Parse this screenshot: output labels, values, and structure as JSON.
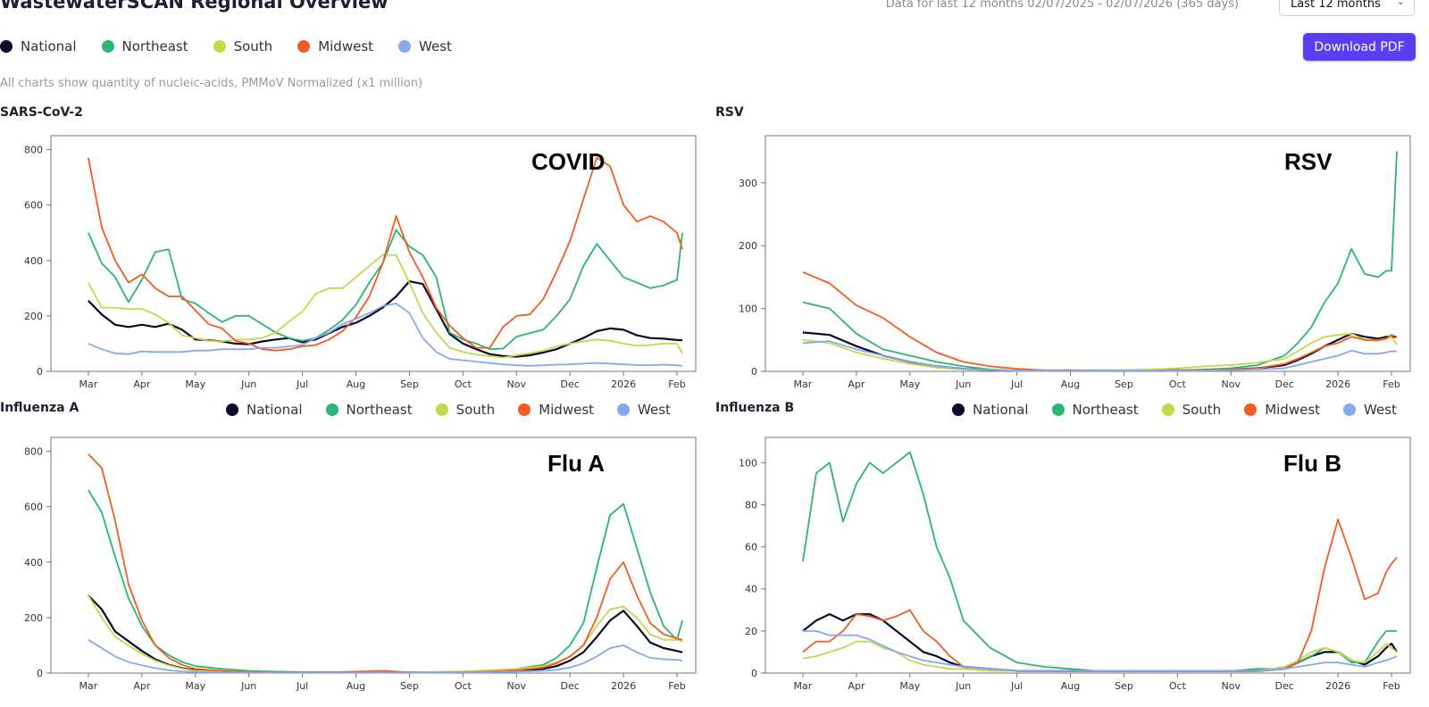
{
  "header": {
    "title": "WastewaterSCAN Regional Overview",
    "range_text": "Data for last 12 months 02/07/2025 - 02/07/2026 (365 days)",
    "range_select": {
      "value": "Last 12 months"
    },
    "download_label": "Download PDF",
    "subtitle": "All charts show quantity of nucleic-acids, PMMoV Normalized (x1 million)"
  },
  "legend": [
    {
      "name": "National",
      "color": "#0b0b2b"
    },
    {
      "name": "Northeast",
      "color": "#2bb673"
    },
    {
      "name": "South",
      "color": "#c5d84a"
    },
    {
      "name": "Midwest",
      "color": "#f25c22"
    },
    {
      "name": "West",
      "color": "#86a8f0"
    }
  ],
  "chart_data": [
    {
      "id": "covid",
      "type": "line",
      "title": "SARS-CoV-2",
      "annotation": "COVID",
      "ylim": [
        0,
        850
      ],
      "yticks": [
        0,
        200,
        400,
        600,
        800
      ],
      "xlabels": [
        "Mar",
        "Apr",
        "May",
        "Jun",
        "Jul",
        "Aug",
        "Sep",
        "Oct",
        "Nov",
        "Dec",
        "2026",
        "Feb"
      ],
      "x": [
        0.0,
        0.25,
        0.5,
        0.75,
        1.0,
        1.25,
        1.5,
        1.75,
        2.0,
        2.25,
        2.5,
        2.75,
        3.0,
        3.25,
        3.5,
        3.75,
        4.0,
        4.25,
        4.5,
        4.75,
        5.0,
        5.25,
        5.5,
        5.75,
        6.0,
        6.25,
        6.5,
        6.75,
        7.0,
        7.25,
        7.5,
        7.75,
        8.0,
        8.25,
        8.5,
        8.75,
        9.0,
        9.25,
        9.5,
        9.75,
        10.0,
        10.25,
        10.5,
        10.75,
        11.0,
        11.1
      ],
      "series": [
        {
          "name": "National",
          "values": [
            255,
            205,
            168,
            160,
            168,
            160,
            172,
            150,
            115,
            112,
            108,
            100,
            98,
            108,
            115,
            120,
            105,
            115,
            138,
            160,
            175,
            200,
            230,
            270,
            325,
            315,
            225,
            135,
            100,
            80,
            62,
            55,
            53,
            58,
            68,
            80,
            100,
            120,
            145,
            155,
            150,
            130,
            120,
            118,
            113,
            112
          ]
        },
        {
          "name": "Northeast",
          "values": [
            500,
            390,
            340,
            250,
            330,
            430,
            440,
            260,
            245,
            210,
            178,
            200,
            200,
            170,
            140,
            120,
            110,
            120,
            150,
            185,
            240,
            320,
            390,
            510,
            450,
            420,
            340,
            140,
            115,
            100,
            80,
            82,
            125,
            138,
            150,
            200,
            260,
            380,
            460,
            400,
            340,
            320,
            300,
            310,
            330,
            500
          ]
        },
        {
          "name": "South",
          "values": [
            320,
            230,
            230,
            225,
            225,
            205,
            175,
            130,
            120,
            110,
            108,
            115,
            115,
            120,
            140,
            180,
            215,
            280,
            300,
            300,
            340,
            380,
            420,
            420,
            320,
            210,
            140,
            85,
            70,
            60,
            55,
            50,
            58,
            65,
            75,
            90,
            100,
            108,
            115,
            110,
            100,
            92,
            95,
            100,
            100,
            65
          ]
        },
        {
          "name": "Midwest",
          "values": [
            770,
            520,
            400,
            320,
            350,
            300,
            270,
            270,
            220,
            170,
            155,
            110,
            100,
            80,
            75,
            80,
            90,
            95,
            115,
            145,
            195,
            270,
            390,
            560,
            430,
            340,
            230,
            165,
            120,
            85,
            85,
            160,
            200,
            205,
            260,
            360,
            470,
            620,
            770,
            740,
            600,
            540,
            560,
            540,
            500,
            440
          ]
        },
        {
          "name": "West",
          "values": [
            100,
            80,
            65,
            62,
            72,
            70,
            70,
            70,
            75,
            75,
            80,
            80,
            80,
            85,
            85,
            90,
            95,
            120,
            140,
            170,
            190,
            210,
            235,
            245,
            210,
            120,
            70,
            45,
            40,
            35,
            30,
            25,
            22,
            20,
            22,
            24,
            25,
            28,
            30,
            28,
            25,
            23,
            22,
            24,
            22,
            20
          ]
        }
      ]
    },
    {
      "id": "rsv",
      "type": "line",
      "title": "RSV",
      "annotation": "RSV",
      "ylim": [
        0,
        375
      ],
      "yticks": [
        0,
        100,
        200,
        300
      ],
      "xlabels": [
        "Mar",
        "Apr",
        "May",
        "Jun",
        "Jul",
        "Aug",
        "Sep",
        "Oct",
        "Nov",
        "Dec",
        "2026",
        "Feb"
      ],
      "x": [
        0.0,
        0.5,
        1.0,
        1.5,
        2.0,
        2.5,
        3.0,
        3.5,
        4.0,
        4.5,
        5.0,
        5.5,
        6.0,
        6.5,
        7.0,
        7.5,
        8.0,
        8.5,
        9.0,
        9.25,
        9.5,
        9.75,
        10.0,
        10.25,
        10.5,
        10.75,
        10.9,
        11.0,
        11.1
      ],
      "series": [
        {
          "name": "National",
          "values": [
            62,
            58,
            40,
            25,
            15,
            8,
            4,
            2,
            1,
            1,
            1,
            1,
            1,
            1,
            2,
            2,
            3,
            5,
            10,
            18,
            28,
            40,
            50,
            60,
            55,
            52,
            55,
            55,
            55
          ]
        },
        {
          "name": "Northeast",
          "values": [
            110,
            100,
            60,
            35,
            25,
            15,
            8,
            3,
            1,
            1,
            1,
            1,
            2,
            2,
            2,
            3,
            5,
            10,
            25,
            45,
            70,
            110,
            140,
            195,
            155,
            150,
            160,
            160,
            350
          ]
        },
        {
          "name": "South",
          "values": [
            50,
            45,
            30,
            20,
            12,
            6,
            3,
            2,
            1,
            1,
            2,
            2,
            2,
            3,
            5,
            8,
            10,
            14,
            20,
            32,
            45,
            55,
            58,
            60,
            50,
            48,
            52,
            55,
            42
          ]
        },
        {
          "name": "Midwest",
          "values": [
            158,
            140,
            105,
            85,
            55,
            30,
            15,
            8,
            4,
            2,
            2,
            1,
            1,
            1,
            2,
            2,
            3,
            5,
            12,
            20,
            30,
            40,
            45,
            55,
            50,
            50,
            52,
            58,
            55
          ]
        },
        {
          "name": "West",
          "values": [
            45,
            48,
            35,
            25,
            15,
            8,
            4,
            2,
            1,
            1,
            1,
            1,
            1,
            1,
            1,
            1,
            2,
            3,
            5,
            10,
            15,
            20,
            25,
            33,
            28,
            28,
            30,
            32,
            32
          ]
        }
      ]
    },
    {
      "id": "flua",
      "type": "line",
      "title": "Influenza A",
      "annotation": "Flu A",
      "ylim": [
        0,
        850
      ],
      "yticks": [
        0,
        200,
        400,
        600,
        800
      ],
      "xlabels": [
        "Mar",
        "Apr",
        "May",
        "Jun",
        "Jul",
        "Aug",
        "Sep",
        "Oct",
        "Nov",
        "Dec",
        "2026",
        "Feb"
      ],
      "x": [
        0.0,
        0.25,
        0.5,
        0.75,
        1.0,
        1.25,
        1.5,
        1.75,
        2.0,
        2.5,
        3.0,
        3.5,
        4.0,
        4.5,
        5.0,
        5.5,
        6.0,
        6.5,
        7.0,
        7.5,
        8.0,
        8.5,
        8.75,
        9.0,
        9.25,
        9.5,
        9.75,
        10.0,
        10.25,
        10.5,
        10.75,
        11.0,
        11.1
      ],
      "series": [
        {
          "name": "National",
          "values": [
            280,
            230,
            150,
            115,
            80,
            50,
            30,
            18,
            10,
            5,
            3,
            2,
            2,
            2,
            2,
            2,
            2,
            3,
            3,
            5,
            8,
            15,
            25,
            45,
            75,
            130,
            190,
            225,
            170,
            110,
            90,
            80,
            75
          ]
        },
        {
          "name": "Northeast",
          "values": [
            660,
            580,
            420,
            270,
            170,
            100,
            65,
            40,
            25,
            15,
            8,
            5,
            4,
            4,
            3,
            3,
            3,
            4,
            5,
            8,
            15,
            30,
            55,
            100,
            180,
            380,
            570,
            610,
            450,
            290,
            170,
            120,
            190
          ]
        },
        {
          "name": "South",
          "values": [
            280,
            200,
            130,
            100,
            70,
            45,
            28,
            16,
            8,
            4,
            3,
            2,
            2,
            2,
            2,
            2,
            3,
            4,
            6,
            10,
            15,
            25,
            40,
            60,
            100,
            170,
            230,
            240,
            200,
            140,
            120,
            120,
            115
          ]
        },
        {
          "name": "Midwest",
          "values": [
            790,
            740,
            550,
            320,
            190,
            100,
            55,
            30,
            15,
            8,
            4,
            3,
            3,
            3,
            5,
            8,
            3,
            2,
            3,
            5,
            10,
            20,
            35,
            60,
            100,
            200,
            340,
            400,
            280,
            180,
            140,
            125,
            120
          ]
        },
        {
          "name": "West",
          "values": [
            120,
            90,
            60,
            40,
            28,
            18,
            10,
            6,
            4,
            2,
            2,
            1,
            1,
            1,
            1,
            1,
            1,
            2,
            2,
            3,
            5,
            8,
            12,
            20,
            35,
            60,
            90,
            100,
            75,
            55,
            50,
            48,
            45
          ]
        }
      ]
    },
    {
      "id": "flub",
      "type": "line",
      "title": "Influenza B",
      "annotation": "Flu B",
      "ylim": [
        0,
        112
      ],
      "yticks": [
        0,
        20,
        40,
        60,
        80,
        100
      ],
      "xlabels": [
        "Mar",
        "Apr",
        "May",
        "Jun",
        "Jul",
        "Aug",
        "Sep",
        "Oct",
        "Nov",
        "Dec",
        "2026",
        "Feb"
      ],
      "x": [
        0.0,
        0.25,
        0.5,
        0.75,
        1.0,
        1.25,
        1.5,
        1.75,
        2.0,
        2.25,
        2.5,
        2.75,
        3.0,
        3.5,
        4.0,
        4.5,
        5.0,
        5.5,
        6.0,
        6.5,
        7.0,
        7.5,
        8.0,
        8.5,
        9.0,
        9.25,
        9.5,
        9.75,
        10.0,
        10.25,
        10.5,
        10.75,
        10.9,
        11.0,
        11.1
      ],
      "series": [
        {
          "name": "National",
          "values": [
            20,
            25,
            28,
            25,
            28,
            28,
            25,
            20,
            15,
            10,
            8,
            5,
            3,
            2,
            1,
            1,
            1,
            1,
            1,
            1,
            1,
            1,
            1,
            1,
            2,
            5,
            8,
            10,
            10,
            6,
            4,
            8,
            12,
            14,
            10
          ]
        },
        {
          "name": "Northeast",
          "values": [
            53,
            95,
            100,
            72,
            90,
            100,
            95,
            100,
            105,
            85,
            60,
            45,
            25,
            12,
            5,
            3,
            2,
            1,
            1,
            1,
            1,
            1,
            1,
            2,
            2,
            5,
            8,
            12,
            10,
            5,
            5,
            15,
            20,
            20,
            20
          ]
        },
        {
          "name": "South",
          "values": [
            7,
            8,
            10,
            12,
            15,
            15,
            12,
            10,
            6,
            4,
            3,
            2,
            2,
            1,
            1,
            1,
            1,
            1,
            1,
            1,
            1,
            1,
            1,
            1,
            3,
            6,
            10,
            12,
            10,
            6,
            5,
            10,
            14,
            12,
            10
          ]
        },
        {
          "name": "Midwest",
          "values": [
            10,
            15,
            15,
            20,
            28,
            27,
            25,
            27,
            30,
            20,
            15,
            8,
            3,
            2,
            1,
            1,
            1,
            1,
            1,
            1,
            1,
            1,
            1,
            1,
            2,
            5,
            20,
            50,
            73,
            55,
            35,
            38,
            48,
            52,
            55
          ]
        },
        {
          "name": "West",
          "values": [
            20,
            20,
            18,
            18,
            18,
            16,
            13,
            10,
            8,
            6,
            5,
            4,
            3,
            2,
            1,
            1,
            1,
            1,
            1,
            1,
            1,
            1,
            1,
            1,
            2,
            3,
            4,
            5,
            5,
            4,
            3,
            5,
            6,
            7,
            8
          ]
        }
      ]
    }
  ]
}
